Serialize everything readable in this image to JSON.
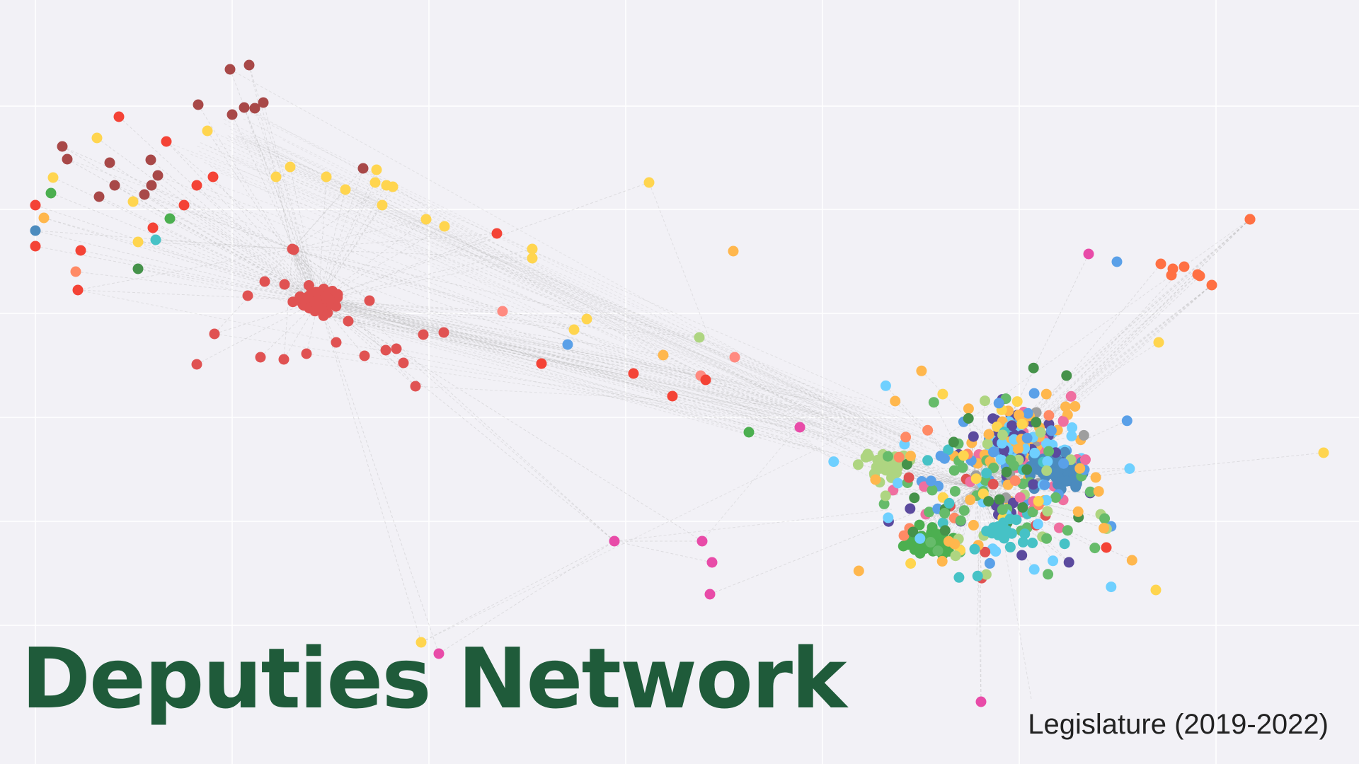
{
  "title": "Deputies Network",
  "subtitle": "Legislature (2019-2022)",
  "colors": {
    "background": "#f2f1f6",
    "grid": "#ffffff",
    "edge": "#b5b5b5",
    "title": "#1f5b3a",
    "palette": [
      "#e05252",
      "#a84848",
      "#ffd54f",
      "#4caf50",
      "#4b8bbe",
      "#6fd0ff",
      "#5b4a9e",
      "#ffb74d",
      "#5aa0e8",
      "#66bb6a",
      "#aed581",
      "#9e9e9e",
      "#ef6fa0",
      "#ff8a65",
      "#e84ba8",
      "#46c2c6",
      "#45924a",
      "#f48fb1",
      "#ff7043",
      "#f44336",
      "#ff8a80"
    ]
  }
}
